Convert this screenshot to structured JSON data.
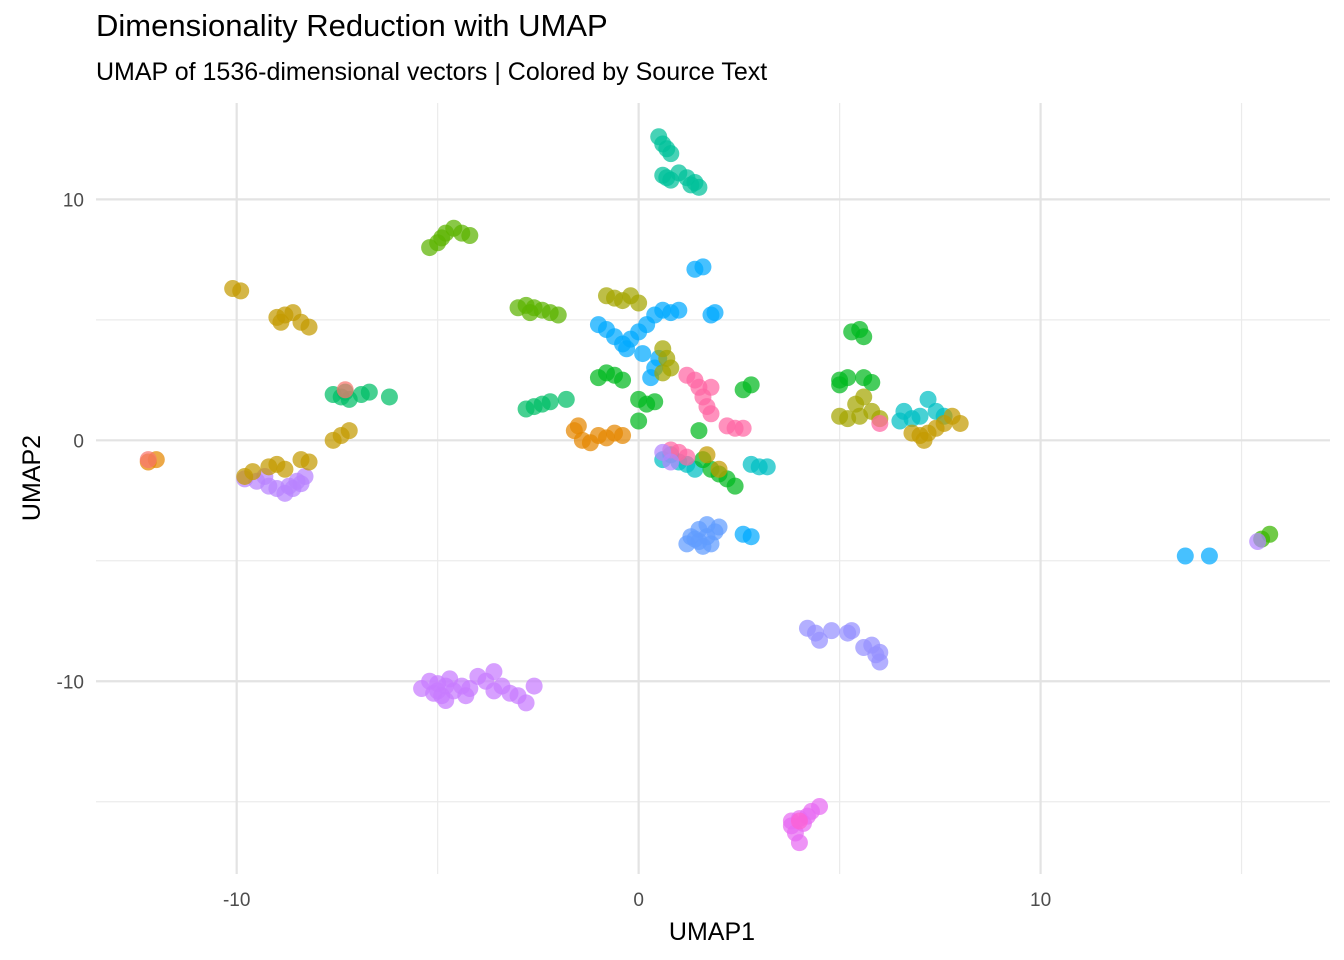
{
  "chart_data": {
    "type": "scatter",
    "title": "Dimensionality Reduction with UMAP",
    "subtitle": "UMAP of 1536-dimensional vectors | Colored by Source Text",
    "xlabel": "UMAP1",
    "ylabel": "UMAP2",
    "xlim": [
      -13.5,
      17.2
    ],
    "ylim": [
      -18.0,
      14.0
    ],
    "x_ticks": [
      -10,
      0,
      10
    ],
    "x_tick_labels": [
      "-10",
      "0",
      "10"
    ],
    "y_ticks": [
      10,
      0,
      -10
    ],
    "y_tick_labels": [
      "10",
      "0",
      "-10"
    ],
    "grid": true,
    "legend": "none",
    "clusters": [
      {
        "color": "#E76BF3",
        "points": [
          [
            4.0,
            -15.7
          ],
          [
            3.8,
            -16.0
          ],
          [
            4.1,
            -15.9
          ],
          [
            4.3,
            -15.4
          ],
          [
            4.5,
            -15.2
          ],
          [
            3.9,
            -16.3
          ],
          [
            4.0,
            -16.7
          ],
          [
            4.2,
            -15.6
          ],
          [
            3.8,
            -15.8
          ]
        ]
      },
      {
        "color": "#C77CFF",
        "points": [
          [
            -5.2,
            -10.0
          ],
          [
            -5.0,
            -10.1
          ],
          [
            -4.8,
            -10.2
          ],
          [
            -4.7,
            -9.9
          ],
          [
            -5.4,
            -10.3
          ],
          [
            -5.1,
            -10.5
          ],
          [
            -4.9,
            -10.6
          ],
          [
            -4.6,
            -10.4
          ],
          [
            -4.4,
            -10.2
          ],
          [
            -4.2,
            -10.3
          ],
          [
            -4.0,
            -9.8
          ],
          [
            -4.3,
            -10.6
          ],
          [
            -4.8,
            -10.8
          ],
          [
            -5.0,
            -10.4
          ],
          [
            -3.6,
            -9.6
          ],
          [
            -3.4,
            -10.2
          ],
          [
            -3.2,
            -10.5
          ],
          [
            -3.0,
            -10.6
          ],
          [
            -2.8,
            -10.9
          ],
          [
            -2.6,
            -10.2
          ],
          [
            -3.8,
            -10.0
          ],
          [
            -3.6,
            -10.4
          ]
        ]
      },
      {
        "color": "#B983FF",
        "points": [
          [
            -9.8,
            -1.6
          ],
          [
            -9.5,
            -1.7
          ],
          [
            -9.2,
            -1.9
          ],
          [
            -9.0,
            -2.0
          ],
          [
            -8.8,
            -2.2
          ],
          [
            -8.6,
            -2.0
          ],
          [
            -8.4,
            -1.8
          ],
          [
            -8.3,
            -1.5
          ],
          [
            -8.5,
            -1.7
          ],
          [
            -9.3,
            -1.5
          ],
          [
            -8.7,
            -1.9
          ]
        ]
      },
      {
        "color": "#9590FF",
        "points": [
          [
            4.2,
            -7.8
          ],
          [
            4.4,
            -8.0
          ],
          [
            4.5,
            -8.3
          ],
          [
            4.8,
            -7.9
          ],
          [
            5.2,
            -8.0
          ],
          [
            5.3,
            -7.9
          ],
          [
            5.6,
            -8.6
          ],
          [
            5.8,
            -8.5
          ],
          [
            6.0,
            -8.8
          ],
          [
            6.0,
            -9.2
          ],
          [
            5.9,
            -8.9
          ]
        ]
      },
      {
        "color": "#619CFF",
        "points": [
          [
            1.3,
            -4.0
          ],
          [
            1.5,
            -4.2
          ],
          [
            1.6,
            -4.4
          ],
          [
            1.8,
            -4.3
          ],
          [
            1.9,
            -3.8
          ],
          [
            2.0,
            -3.6
          ],
          [
            1.7,
            -3.5
          ],
          [
            1.5,
            -3.7
          ],
          [
            1.4,
            -4.1
          ],
          [
            1.2,
            -4.3
          ],
          [
            1.7,
            -4.0
          ]
        ]
      },
      {
        "color": "#00A9FF",
        "points": [
          [
            -1.0,
            4.8
          ],
          [
            -0.8,
            4.6
          ],
          [
            -0.6,
            4.3
          ],
          [
            -0.4,
            4.0
          ],
          [
            -0.2,
            4.2
          ],
          [
            0.0,
            4.5
          ],
          [
            0.2,
            4.8
          ],
          [
            0.4,
            5.2
          ],
          [
            0.6,
            5.4
          ],
          [
            0.8,
            5.3
          ],
          [
            1.0,
            5.4
          ],
          [
            0.4,
            3.0
          ],
          [
            0.3,
            2.6
          ],
          [
            0.5,
            3.4
          ],
          [
            1.4,
            7.1
          ],
          [
            1.6,
            7.2
          ],
          [
            1.8,
            5.2
          ],
          [
            1.9,
            5.3
          ],
          [
            2.6,
            -3.9
          ],
          [
            2.8,
            -4.0
          ],
          [
            13.6,
            -4.8
          ],
          [
            14.2,
            -4.8
          ],
          [
            -0.3,
            3.8
          ],
          [
            0.1,
            3.6
          ]
        ]
      },
      {
        "color": "#00BFC4",
        "points": [
          [
            0.6,
            -0.8
          ],
          [
            0.8,
            -0.6
          ],
          [
            1.0,
            -0.9
          ],
          [
            1.2,
            -1.0
          ],
          [
            1.4,
            -1.2
          ],
          [
            2.8,
            -1.0
          ],
          [
            3.0,
            -1.1
          ],
          [
            3.2,
            -1.1
          ],
          [
            6.6,
            1.2
          ],
          [
            6.8,
            0.9
          ],
          [
            7.0,
            1.0
          ],
          [
            7.2,
            1.7
          ],
          [
            7.4,
            1.2
          ],
          [
            7.6,
            1.0
          ],
          [
            6.5,
            0.8
          ]
        ]
      },
      {
        "color": "#00C19A",
        "points": [
          [
            0.5,
            12.6
          ],
          [
            0.6,
            12.3
          ],
          [
            0.7,
            12.1
          ],
          [
            0.8,
            11.9
          ],
          [
            0.6,
            11.0
          ],
          [
            0.8,
            10.8
          ],
          [
            1.0,
            11.1
          ],
          [
            1.2,
            10.9
          ],
          [
            1.4,
            10.7
          ],
          [
            1.5,
            10.5
          ],
          [
            1.3,
            10.6
          ],
          [
            0.7,
            10.9
          ]
        ]
      },
      {
        "color": "#00BE67",
        "points": [
          [
            -7.6,
            1.9
          ],
          [
            -7.4,
            1.8
          ],
          [
            -7.2,
            1.7
          ],
          [
            -6.9,
            1.9
          ],
          [
            -6.7,
            2.0
          ],
          [
            -6.2,
            1.8
          ],
          [
            -7.3,
            2.0
          ],
          [
            -2.6,
            1.4
          ],
          [
            -2.4,
            1.5
          ],
          [
            -2.2,
            1.6
          ],
          [
            -1.8,
            1.7
          ],
          [
            -2.8,
            1.3
          ]
        ]
      },
      {
        "color": "#00B81F",
        "points": [
          [
            -1.0,
            2.6
          ],
          [
            -0.8,
            2.8
          ],
          [
            -0.6,
            2.7
          ],
          [
            -0.4,
            2.5
          ],
          [
            0.0,
            1.7
          ],
          [
            0.2,
            1.5
          ],
          [
            0.4,
            1.6
          ],
          [
            0.0,
            0.8
          ],
          [
            1.5,
            0.4
          ],
          [
            1.6,
            -0.8
          ],
          [
            1.8,
            -1.2
          ],
          [
            2.0,
            -1.4
          ],
          [
            2.2,
            -1.6
          ],
          [
            2.4,
            -1.9
          ],
          [
            2.6,
            2.1
          ],
          [
            2.8,
            2.3
          ],
          [
            5.3,
            4.5
          ],
          [
            5.5,
            4.6
          ],
          [
            5.6,
            4.3
          ],
          [
            5.0,
            2.5
          ],
          [
            5.2,
            2.6
          ],
          [
            5.6,
            2.6
          ],
          [
            5.8,
            2.4
          ],
          [
            5.0,
            2.3
          ]
        ]
      },
      {
        "color": "#5BB300",
        "points": [
          [
            -3.0,
            5.5
          ],
          [
            -2.8,
            5.6
          ],
          [
            -2.6,
            5.5
          ],
          [
            -2.4,
            5.4
          ],
          [
            -2.2,
            5.3
          ],
          [
            -2.0,
            5.2
          ],
          [
            -2.7,
            5.3
          ],
          [
            -5.2,
            8.0
          ],
          [
            -5.0,
            8.2
          ],
          [
            -4.8,
            8.6
          ],
          [
            -4.6,
            8.8
          ],
          [
            -4.4,
            8.6
          ],
          [
            -4.2,
            8.5
          ],
          [
            -4.9,
            8.4
          ]
        ]
      },
      {
        "color": "#A3A500",
        "points": [
          [
            -0.8,
            6.0
          ],
          [
            -0.6,
            5.9
          ],
          [
            -0.4,
            5.8
          ],
          [
            -0.2,
            6.0
          ],
          [
            0.0,
            5.7
          ],
          [
            0.6,
            3.8
          ],
          [
            0.7,
            3.4
          ],
          [
            0.8,
            3.0
          ],
          [
            0.6,
            2.8
          ],
          [
            5.0,
            1.0
          ],
          [
            5.2,
            0.9
          ],
          [
            5.4,
            1.5
          ],
          [
            5.5,
            1.0
          ],
          [
            5.8,
            1.2
          ],
          [
            6.0,
            0.9
          ],
          [
            5.6,
            1.8
          ]
        ]
      },
      {
        "color": "#C49A00",
        "points": [
          [
            -10.1,
            6.3
          ],
          [
            -9.9,
            6.2
          ],
          [
            -9.0,
            5.1
          ],
          [
            -8.8,
            5.2
          ],
          [
            -8.6,
            5.3
          ],
          [
            -8.4,
            4.9
          ],
          [
            -8.2,
            4.7
          ],
          [
            -8.9,
            4.9
          ],
          [
            -9.8,
            -1.5
          ],
          [
            -9.6,
            -1.3
          ],
          [
            -9.2,
            -1.1
          ],
          [
            -9.0,
            -1.0
          ],
          [
            -8.4,
            -0.8
          ],
          [
            -8.2,
            -0.9
          ],
          [
            -8.8,
            -1.2
          ],
          [
            -7.6,
            0.0
          ],
          [
            -7.4,
            0.2
          ],
          [
            -7.2,
            0.4
          ],
          [
            6.8,
            0.3
          ],
          [
            7.0,
            0.2
          ],
          [
            7.2,
            0.3
          ],
          [
            7.4,
            0.5
          ],
          [
            7.6,
            0.7
          ],
          [
            7.8,
            1.0
          ],
          [
            8.0,
            0.7
          ],
          [
            7.1,
            0.0
          ],
          [
            2.0,
            -1.2
          ],
          [
            1.7,
            -0.6
          ]
        ]
      },
      {
        "color": "#E58700",
        "points": [
          [
            -1.6,
            0.4
          ],
          [
            -1.4,
            0.0
          ],
          [
            -1.2,
            -0.1
          ],
          [
            -1.0,
            0.2
          ],
          [
            -0.8,
            0.1
          ],
          [
            -0.6,
            0.3
          ],
          [
            -1.5,
            0.6
          ],
          [
            -0.4,
            0.2
          ],
          [
            -12.2,
            -0.9
          ],
          [
            -12.0,
            -0.8
          ]
        ]
      },
      {
        "color": "#F8766D",
        "points": [
          [
            -12.2,
            -0.8
          ],
          [
            -7.3,
            2.1
          ]
        ]
      },
      {
        "color": "#FD61D1",
        "points": [
          [
            4.0,
            -15.8
          ]
        ]
      },
      {
        "color": "#FF67A4",
        "points": [
          [
            1.2,
            2.7
          ],
          [
            1.4,
            2.5
          ],
          [
            1.5,
            2.2
          ],
          [
            1.6,
            1.8
          ],
          [
            1.7,
            1.4
          ],
          [
            1.8,
            1.1
          ],
          [
            1.8,
            2.2
          ],
          [
            2.2,
            0.6
          ],
          [
            2.4,
            0.5
          ],
          [
            2.6,
            0.5
          ],
          [
            6.0,
            0.7
          ],
          [
            1.0,
            -0.5
          ],
          [
            1.2,
            -0.7
          ],
          [
            0.8,
            -0.4
          ]
        ]
      },
      {
        "color": "#39B600",
        "points": [
          [
            15.5,
            -4.1
          ],
          [
            15.7,
            -3.9
          ]
        ]
      },
      {
        "color": "#B385FF",
        "points": [
          [
            15.4,
            -4.2
          ],
          [
            0.6,
            -0.5
          ],
          [
            0.8,
            -0.9
          ]
        ]
      }
    ]
  }
}
